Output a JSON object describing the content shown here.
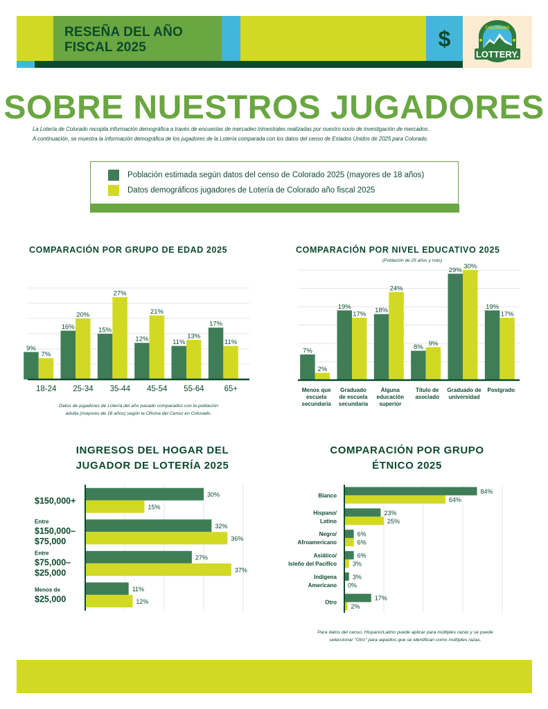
{
  "header": {
    "title_line1": "RESEÑA DEL AÑO",
    "title_line2": "FISCAL 2025",
    "dollar_icon": "$",
    "logo": {
      "top_text": "COLORADO",
      "bottom_text": "LOTTERY."
    }
  },
  "main": {
    "title": "SOBRE NUESTROS JUGADORES",
    "intro_line1": "La Lotería de Colorado recopila información demográfica a través de encuestas de mercadeo trimestrales realizadas por nuestro socio de investigación de mercados.",
    "intro_line2": "A continuación, se muestra la información demográfica de los jugadores de la Lotería comparada con los datos del censo de Estados Unidos de 2025 para Colorado."
  },
  "legend": {
    "items": [
      {
        "label": "Población estimada según datos del censo de Colorado 2025 (mayores de 18 años)",
        "color": "#3f7d57"
      },
      {
        "label": "Datos demográficos jugadores de Lotería de Colorado año fiscal 2025",
        "color": "#d2d923"
      }
    ]
  },
  "colors": {
    "census": "#3f7d57",
    "players": "#d2d923",
    "dark": "#0b4a2d",
    "brand_green": "#6aa641",
    "blue": "#43b6dc"
  },
  "chart_data": [
    {
      "id": "age",
      "type": "bar",
      "title": "COMPARACIÓN POR GRUPO DE EDAD 2025",
      "categories": [
        "18-24",
        "25-34",
        "35-44",
        "45-54",
        "55-64",
        "65+"
      ],
      "series": [
        {
          "name": "Población estimada según datos del censo de Colorado 2025 (mayores de 18 años)",
          "values": [
            9,
            16,
            15,
            12,
            11,
            17
          ]
        },
        {
          "name": "Datos demográficos jugadores de Lotería de Colorado año fiscal 2025",
          "values": [
            7,
            20,
            27,
            21,
            13,
            11
          ]
        }
      ],
      "ylim": [
        0,
        30
      ],
      "grid": true,
      "note_line1": "Datos de jugadores de Lotería del año pasado comparados con la población",
      "note_line2": "adulta (mayores de 18 años) según la Oficina del Censo en Colorado."
    },
    {
      "id": "education",
      "type": "bar",
      "title": "COMPARACIÓN POR NIVEL EDUCATIVO 2025",
      "subtitle": "(Población de 25 años y más)",
      "categories": [
        [
          "Menos que",
          "escuela",
          "secundaria"
        ],
        [
          "Graduado",
          "de escuela",
          "secundaria"
        ],
        [
          "Alguna",
          "educación",
          "superior"
        ],
        [
          "Título de",
          "asociado"
        ],
        [
          "Graduado de",
          "universidad"
        ],
        [
          "Postgrado"
        ]
      ],
      "series": [
        {
          "name": "Población estimada según datos del censo de Colorado 2025 (mayores de 18 años)",
          "values": [
            7,
            19,
            18,
            8,
            29,
            19
          ]
        },
        {
          "name": "Datos demográficos jugadores de Lotería de Colorado año fiscal 2025",
          "values": [
            2,
            17,
            24,
            9,
            30,
            17
          ]
        }
      ],
      "ylim": [
        0,
        30
      ],
      "grid": true
    },
    {
      "id": "income",
      "type": "bar",
      "orientation": "horizontal",
      "title_line1": "INGRESOS DEL HOGAR DEL",
      "title_line2": "JUGADOR DE LOTERÍA 2025",
      "categories": [
        {
          "small": "",
          "big": [
            "$150,000+"
          ]
        },
        {
          "small": "Entre",
          "big": [
            "$150,000–",
            "$75,000"
          ]
        },
        {
          "small": "Entre",
          "big": [
            "$75,000–",
            "$25,000"
          ]
        },
        {
          "small": "Menos de",
          "big": [
            "$25,000"
          ]
        }
      ],
      "series": [
        {
          "name": "Población estimada según datos del censo de Colorado 2025 (mayores de 18 años)",
          "values": [
            30,
            32,
            27,
            11
          ]
        },
        {
          "name": "Datos demográficos jugadores de Lotería de Colorado año fiscal 2025",
          "values": [
            15,
            36,
            37,
            12
          ]
        }
      ],
      "xlim": [
        0,
        40
      ],
      "grid": true
    },
    {
      "id": "ethnic",
      "type": "bar",
      "orientation": "horizontal",
      "title_line1": "COMPARACIÓN POR GRUPO",
      "title_line2": "ÉTNICO 2025",
      "categories": [
        [
          "Blanco"
        ],
        [
          "Hispano/",
          "Latino"
        ],
        [
          "Negro/",
          "Afroamericano"
        ],
        [
          "Asiático/",
          "Isleño del Pacífico"
        ],
        [
          "Indígena",
          "Americano"
        ],
        [
          "Otro"
        ]
      ],
      "series": [
        {
          "name": "Población estimada según datos del censo de Colorado 2025 (mayores de 18 años)",
          "values": [
            84,
            23,
            6,
            6,
            3,
            17
          ]
        },
        {
          "name": "Datos demográficos jugadores de Lotería de Colorado año fiscal 2025",
          "values": [
            64,
            25,
            6,
            3,
            0,
            2
          ]
        }
      ],
      "xlim": [
        0,
        100
      ],
      "grid": true,
      "note_line1": "Para datos del censo, Hispano/Latino puede aplicar para múltiples razas y se puede",
      "note_line2": "seleccionar \"Otro\" para aquellos que se identifican como múltiples razas."
    }
  ]
}
